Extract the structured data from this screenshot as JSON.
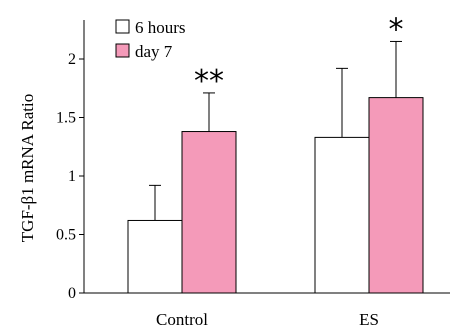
{
  "chart_data": {
    "type": "bar",
    "ylabel": "TGF-β1 mRNA Ratio",
    "ylim": [
      0,
      2.3
    ],
    "yticks": [
      0,
      0.5,
      1,
      1.5,
      2
    ],
    "ytick_labels": [
      "0",
      "0.5",
      "1",
      "1.5",
      "2"
    ],
    "categories": [
      "Control",
      "ES"
    ],
    "series": [
      {
        "name": "6 hours",
        "values": [
          0.62,
          1.33
        ],
        "errors": [
          0.3,
          0.59
        ],
        "color": "#ffffff"
      },
      {
        "name": "day 7",
        "values": [
          1.38,
          1.67
        ],
        "errors": [
          0.33,
          0.48
        ],
        "color": "#f49ab9"
      }
    ],
    "annotations": [
      {
        "category": "Control",
        "series": "day 7",
        "text": "**"
      },
      {
        "category": "ES",
        "series": "day 7",
        "text": "*"
      }
    ],
    "legend": "top-left",
    "grid": false
  }
}
